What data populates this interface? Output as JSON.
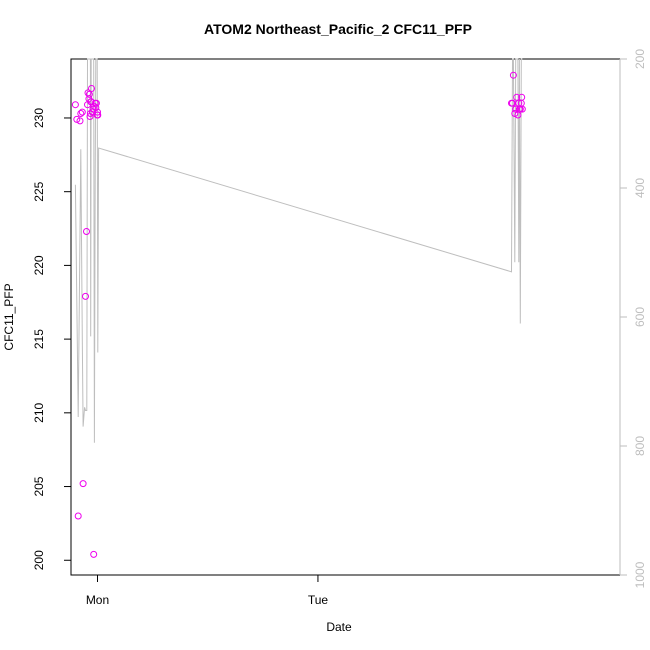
{
  "chart_data": {
    "type": "scatter",
    "title": "ATOM2 Northeast_Pacific_2 CFC11_PFP",
    "xlabel": "Date",
    "ylabel": "CFC11_PFP",
    "x_ticks": [
      "Mon",
      "Tue"
    ],
    "y_ticks": [
      "200",
      "205",
      "210",
      "215",
      "220",
      "225",
      "230"
    ],
    "y_right_ticks": [
      "200",
      "400",
      "600",
      "800",
      "1000"
    ],
    "ylim": [
      199,
      234
    ],
    "y_right_lim": [
      1000,
      200
    ],
    "xlim": [
      "Sun 21:07",
      "Wed 08:53"
    ],
    "colors": {
      "points": "#ee00ee",
      "line": "#bebebe",
      "axis": "#000000",
      "right_axis": "#bebebe"
    },
    "series": [
      {
        "type": "points",
        "x": [
          "Sun 21:36",
          "Sun 21:45",
          "Sun 21:54",
          "Sun 22:06",
          "Sun 22:11",
          "Sun 22:21",
          "Sun 22:26",
          "Sun 22:42",
          "Sun 22:48",
          "Sun 22:55",
          "Sun 22:58",
          "Sun 23:04",
          "Sun 23:07",
          "Sun 23:11",
          "Sun 23:14",
          "Sun 23:16",
          "Sun 23:19",
          "Sun 23:21",
          "Sun 23:27",
          "Sun 23:31",
          "Sun 23:35",
          "Sun 23:37",
          "Sun 23:45",
          "Sun 23:49",
          "Sun 23:53",
          "Sun 23:58",
          "Mon 00:00",
          "Mon 00:02",
          "Tue 21:04",
          "Tue 21:11",
          "Tue 21:17",
          "Tue 21:26",
          "Tue 21:32",
          "Tue 21:38",
          "Tue 21:46",
          "Tue 21:52",
          "Tue 21:56",
          "Tue 22:02",
          "Tue 22:08",
          "Tue 22:11",
          "Tue 22:15"
        ],
        "y": [
          230.9,
          229.9,
          203.0,
          229.8,
          230.3,
          230.4,
          205.2,
          217.9,
          222.3,
          230.9,
          231.7,
          231.3,
          231.6,
          230.1,
          230.3,
          231.1,
          231.1,
          232.0,
          230.4,
          230.6,
          200.4,
          230.8,
          231.0,
          230.7,
          231.0,
          230.2,
          230.4,
          230.2,
          231.0,
          231.0,
          232.9,
          230.3,
          230.6,
          231.4,
          230.2,
          231.0,
          230.6,
          230.6,
          231.0,
          231.4,
          230.6
        ]
      },
      {
        "type": "line",
        "axis": "right",
        "x": [
          "Sun 21:36",
          "Sun 21:54",
          "Sun 22:11",
          "Sun 22:21",
          "Sun 22:26",
          "Sun 22:36",
          "Sun 22:42",
          "Sun 22:50",
          "Sun 22:55",
          "Sun 23:04",
          "Sun 23:11",
          "Sun 23:14",
          "Sun 23:16",
          "Sun 23:19",
          "Sun 23:27",
          "Sun 23:31",
          "Sun 23:35",
          "Sun 23:40",
          "Sun 23:45",
          "Sun 23:49",
          "Sun 23:53",
          "Sun 23:58",
          "Mon 00:02",
          "Mon 00:07",
          "Tue 21:04",
          "Tue 21:11",
          "Tue 21:17",
          "Tue 21:26",
          "Tue 21:32",
          "Tue 21:38",
          "Tue 21:46",
          "Tue 21:52",
          "Tue 21:56",
          "Tue 22:02",
          "Tue 22:08",
          "Tue 22:11",
          "Tue 22:15"
        ],
        "y": [
          395,
          755,
          340,
          635,
          770,
          740,
          745,
          745,
          200,
          200,
          200,
          200,
          630,
          200,
          200,
          200,
          200,
          795,
          380,
          200,
          200,
          200,
          655,
          338,
          530,
          200,
          200,
          515,
          200,
          200,
          200,
          515,
          200,
          610,
          200,
          200,
          200
        ]
      }
    ]
  }
}
